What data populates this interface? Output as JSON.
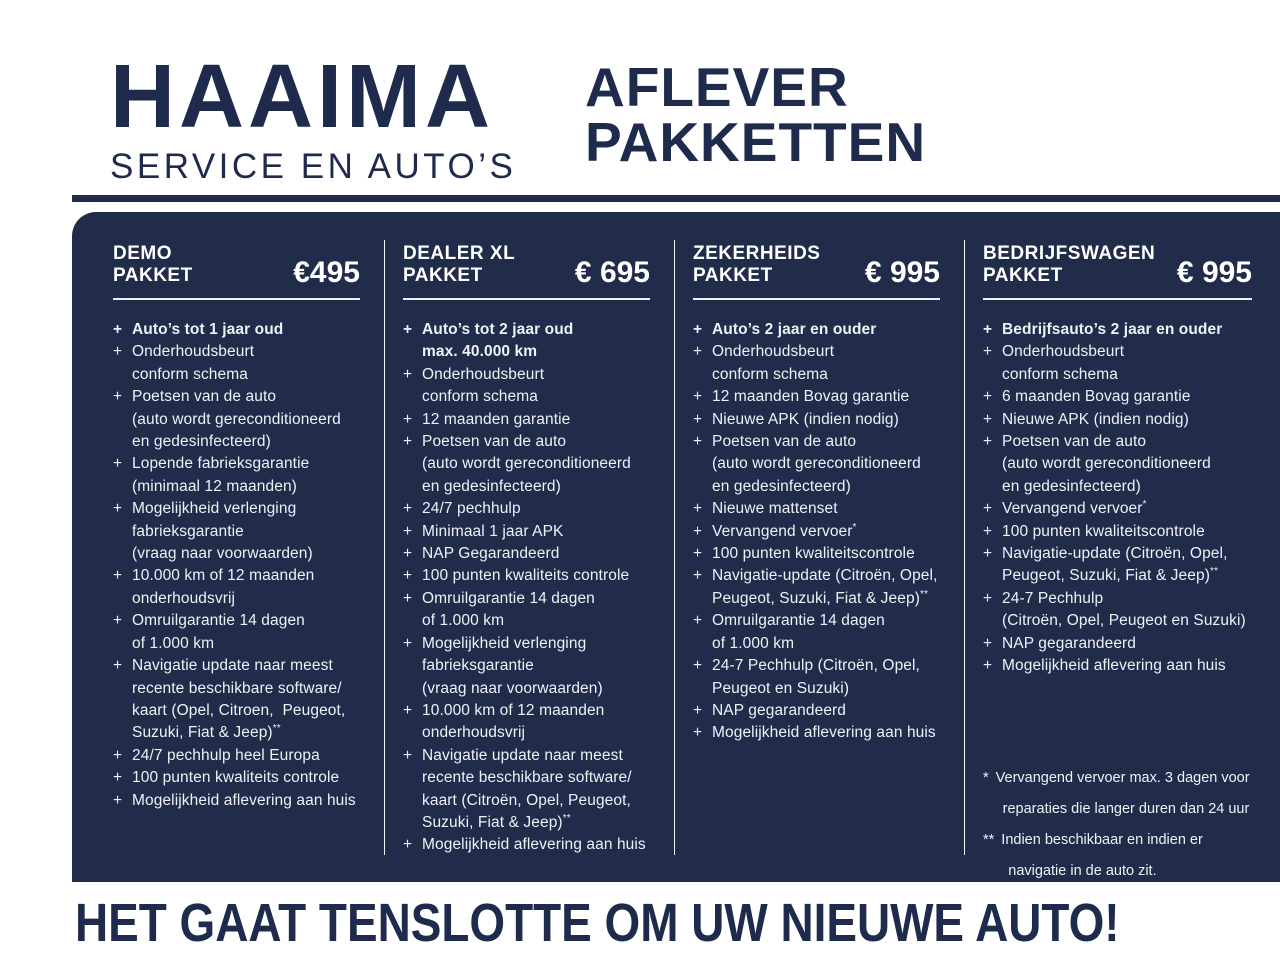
{
  "colors": {
    "navy_panel": "#202c4a",
    "ink": "#1f2b4d",
    "panel_text": "#eef1f6"
  },
  "header": {
    "logo": {
      "name": "HAAIMA",
      "tagline": "SERVICE EN AUTO’S"
    },
    "title": {
      "line1": "AFLEVER",
      "line2": "PAKKETTEN"
    }
  },
  "packages": [
    {
      "name_lines": [
        "DEMO",
        "PAKKET"
      ],
      "price": "€495",
      "items": [
        {
          "bold": true,
          "lines": [
            "Auto’s tot 1 jaar oud"
          ]
        },
        {
          "lines": [
            "Onderhoudsbeurt",
            "conform schema"
          ]
        },
        {
          "lines": [
            "Poetsen van de auto",
            "(auto wordt gereconditioneerd",
            "en gedesinfecteerd)"
          ]
        },
        {
          "lines": [
            "Lopende fabrieksgarantie",
            "(minimaal 12 maanden)"
          ]
        },
        {
          "lines": [
            "Mogelijkheid verlenging",
            "fabrieksgarantie",
            "(vraag naar voorwaarden)"
          ]
        },
        {
          "lines": [
            "10.000 km of 12 maanden",
            "onderhoudsvrij"
          ]
        },
        {
          "lines": [
            "Omruilgarantie 14 dagen",
            "of 1.000 km"
          ]
        },
        {
          "lines": [
            "Navigatie update naar meest",
            "recente beschikbare software/",
            "kaart (Opel, Citroen,  Peugeot,",
            "Suzuki, Fiat & Jeep)**"
          ]
        },
        {
          "lines": [
            "24/7 pechhulp heel Europa"
          ]
        },
        {
          "lines": [
            "100 punten kwaliteits controle"
          ]
        },
        {
          "lines": [
            "Mogelijkheid aflevering aan huis"
          ]
        }
      ]
    },
    {
      "name_lines": [
        "DEALER XL",
        "PAKKET"
      ],
      "price": "€ 695",
      "items": [
        {
          "bold": true,
          "lines": [
            "Auto’s tot 2 jaar oud",
            "max. 40.000 km"
          ]
        },
        {
          "lines": [
            "Onderhoudsbeurt",
            "conform schema"
          ]
        },
        {
          "lines": [
            "12 maanden garantie"
          ]
        },
        {
          "lines": [
            "Poetsen van de auto",
            "(auto wordt gereconditioneerd",
            "en gedesinfecteerd)"
          ]
        },
        {
          "lines": [
            "24/7 pechhulp"
          ]
        },
        {
          "lines": [
            "Minimaal 1 jaar APK"
          ]
        },
        {
          "lines": [
            "NAP Gegarandeerd"
          ]
        },
        {
          "lines": [
            "100 punten kwaliteits controle"
          ]
        },
        {
          "lines": [
            "Omruilgarantie 14 dagen",
            "of 1.000 km"
          ]
        },
        {
          "lines": [
            "Mogelijkheid verlenging",
            "fabrieksgarantie",
            "(vraag naar voorwaarden)"
          ]
        },
        {
          "lines": [
            "10.000 km of 12 maanden",
            "onderhoudsvrij"
          ]
        },
        {
          "lines": [
            "Navigatie update naar meest",
            "recente beschikbare software/",
            "kaart (Citroën, Opel, Peugeot,",
            "Suzuki, Fiat & Jeep)**"
          ]
        },
        {
          "lines": [
            "Mogelijkheid aflevering aan huis"
          ]
        }
      ]
    },
    {
      "name_lines": [
        "ZEKERHEIDS",
        "PAKKET"
      ],
      "price": "€ 995",
      "items": [
        {
          "bold": true,
          "lines": [
            "Auto’s 2 jaar en ouder"
          ]
        },
        {
          "lines": [
            "Onderhoudsbeurt",
            "conform schema"
          ]
        },
        {
          "lines": [
            "12 maanden Bovag garantie"
          ]
        },
        {
          "lines": [
            "Nieuwe APK (indien nodig)"
          ]
        },
        {
          "lines": [
            "Poetsen van de auto",
            "(auto wordt gereconditioneerd",
            "en gedesinfecteerd)"
          ]
        },
        {
          "lines": [
            "Nieuwe mattenset"
          ]
        },
        {
          "lines": [
            "Vervangend vervoer*"
          ]
        },
        {
          "lines": [
            "100 punten kwaliteitscontrole"
          ]
        },
        {
          "lines": [
            "Navigatie-update (Citroën, Opel,",
            "Peugeot, Suzuki, Fiat & Jeep)**"
          ]
        },
        {
          "lines": [
            "Omruilgarantie 14 dagen",
            "of 1.000 km"
          ]
        },
        {
          "lines": [
            "24-7 Pechhulp (Citroën, Opel,",
            "Peugeot en Suzuki)"
          ]
        },
        {
          "lines": [
            "NAP gegarandeerd"
          ]
        },
        {
          "lines": [
            "Mogelijkheid aflevering aan huis"
          ]
        }
      ]
    },
    {
      "name_lines": [
        "BEDRIJFSWAGEN",
        "PAKKET"
      ],
      "price": "€ 995",
      "items": [
        {
          "bold": true,
          "lines": [
            "Bedrijfsauto’s 2 jaar en ouder"
          ]
        },
        {
          "lines": [
            "Onderhoudsbeurt",
            "conform schema"
          ]
        },
        {
          "lines": [
            "6 maanden Bovag garantie"
          ]
        },
        {
          "lines": [
            "Nieuwe APK (indien nodig)"
          ]
        },
        {
          "lines": [
            "Poetsen van de auto",
            "(auto wordt gereconditioneerd",
            "en gedesinfecteerd)"
          ]
        },
        {
          "lines": [
            "Vervangend vervoer*"
          ]
        },
        {
          "lines": [
            "100 punten kwaliteitscontrole"
          ]
        },
        {
          "lines": [
            "Navigatie-update (Citroën, Opel,",
            "Peugeot, Suzuki, Fiat & Jeep)**"
          ]
        },
        {
          "lines": [
            "24-7 Pechhulp",
            "(Citroën, Opel, Peugeot en Suzuki)"
          ]
        },
        {
          "lines": [
            "NAP gegarandeerd"
          ]
        },
        {
          "lines": [
            "Mogelijkheid aflevering aan huis"
          ]
        }
      ]
    }
  ],
  "footnotes": [
    {
      "marker": "*",
      "lines": [
        "Vervangend vervoer max. 3 dagen voor",
        "reparaties die langer duren dan 24 uur"
      ]
    },
    {
      "marker": "**",
      "lines": [
        "Indien beschikbaar en indien er",
        "navigatie in de auto zit."
      ]
    }
  ],
  "tagline": "HET GAAT TENSLOTTE OM UW NIEUWE AUTO!"
}
